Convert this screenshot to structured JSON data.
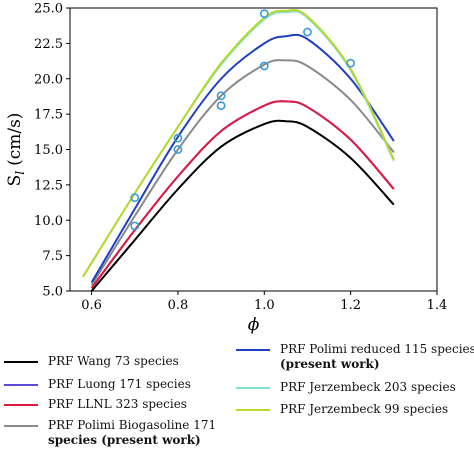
{
  "chart_data": {
    "type": "line",
    "xlabel": "ϕ",
    "ylabel_main": "S",
    "ylabel_sub": "l",
    "ylabel_unit": "(cm/s)",
    "xlim": [
      0.55,
      1.4
    ],
    "ylim": [
      5.0,
      25.0
    ],
    "xticks": [
      "0.6",
      "0.8",
      "1.0",
      "1.2",
      "1.4"
    ],
    "yticks": [
      "5.0",
      "7.5",
      "10.0",
      "12.5",
      "15.0",
      "17.5",
      "20.0",
      "22.5",
      "25.0"
    ],
    "xtick_values": [
      0.6,
      0.8,
      1.0,
      1.2,
      1.4
    ],
    "ytick_values": [
      5.0,
      7.5,
      10.0,
      12.5,
      15.0,
      17.5,
      20.0,
      22.5,
      25.0
    ],
    "series": [
      {
        "name": "PRF Wang 73 species",
        "color": "#000000",
        "x": [
          0.6,
          0.7,
          0.8,
          0.9,
          1.0,
          1.05,
          1.1,
          1.2,
          1.3
        ],
        "y": [
          5.0,
          8.6,
          12.2,
          15.2,
          16.8,
          17.0,
          16.6,
          14.4,
          11.1
        ]
      },
      {
        "name": "PRF Luong 171 species",
        "color": "#5b4bd6",
        "x": [
          0.6,
          0.7,
          0.8,
          0.9,
          1.0,
          1.05,
          1.1,
          1.2,
          1.3
        ],
        "y": [
          5.2,
          9.3,
          13.1,
          16.3,
          18.1,
          18.4,
          18.0,
          15.7,
          12.2
        ]
      },
      {
        "name": "PRF LLNL 323 species",
        "color": "#e0193e",
        "x": [
          0.6,
          0.7,
          0.8,
          0.9,
          1.0,
          1.05,
          1.1,
          1.2,
          1.3
        ],
        "y": [
          5.2,
          9.3,
          13.1,
          16.3,
          18.1,
          18.4,
          18.0,
          15.7,
          12.2
        ]
      },
      {
        "name": "PRF Polimi Biogasoline 171 species (present work)",
        "color": "#8a8a8a",
        "x": [
          0.6,
          0.7,
          0.8,
          0.9,
          1.0,
          1.05,
          1.1,
          1.2,
          1.3
        ],
        "y": [
          5.4,
          10.3,
          15.0,
          18.8,
          21.0,
          21.3,
          20.9,
          18.5,
          14.8
        ]
      },
      {
        "name": "PRF Polimi reduced 115 species (present work)",
        "color": "#1f3fbf",
        "x": [
          0.6,
          0.7,
          0.8,
          0.9,
          1.0,
          1.05,
          1.1,
          1.2,
          1.3
        ],
        "y": [
          5.6,
          10.8,
          15.9,
          20.0,
          22.5,
          23.0,
          22.8,
          20.0,
          15.6
        ]
      },
      {
        "name": "PRF Jerzembeck 203 species",
        "color": "#7fe3d1",
        "x": [
          0.58,
          0.7,
          0.8,
          0.9,
          1.0,
          1.05,
          1.1,
          1.2,
          1.3
        ],
        "y": [
          6.0,
          11.9,
          16.6,
          21.0,
          24.2,
          24.7,
          24.3,
          20.6,
          14.2
        ]
      },
      {
        "name": "PRF Jerzembeck 99 species",
        "color": "#b8d82a",
        "x": [
          0.58,
          0.7,
          0.8,
          0.9,
          1.0,
          1.05,
          1.1,
          1.2,
          1.3
        ],
        "y": [
          6.0,
          11.9,
          16.6,
          21.1,
          24.3,
          24.8,
          24.4,
          20.7,
          14.3
        ]
      }
    ],
    "markers": {
      "type": "scatter",
      "style": "open-circle",
      "color": "#3a9ad9",
      "x": [
        0.7,
        0.7,
        0.8,
        0.8,
        0.9,
        0.9,
        1.0,
        1.0,
        1.1,
        1.2
      ],
      "y": [
        11.6,
        9.6,
        15.8,
        15.0,
        18.8,
        18.1,
        24.6,
        20.9,
        23.3,
        21.1
      ]
    },
    "legend_placement": "below",
    "grid": false
  },
  "legend": {
    "items": [
      {
        "label": "PRF Wang 73 species",
        "color": "#000000"
      },
      {
        "label": "PRF Luong 171 species",
        "color": "#5b4bd6"
      },
      {
        "label": "PRF LLNL 323 species",
        "color": "#e0193e"
      },
      {
        "label": "PRF Polimi Biogasoline 171",
        "label_line2": "species (present work)",
        "color": "#8a8a8a"
      },
      {
        "label": "PRF Polimi reduced 115 species",
        "label_line2": "(present work)",
        "color": "#1f3fbf"
      },
      {
        "label": "PRF Jerzembeck 203 species",
        "color": "#7fe3d1"
      },
      {
        "label": "PRF Jerzembeck 99 species",
        "color": "#b8d82a"
      }
    ]
  }
}
